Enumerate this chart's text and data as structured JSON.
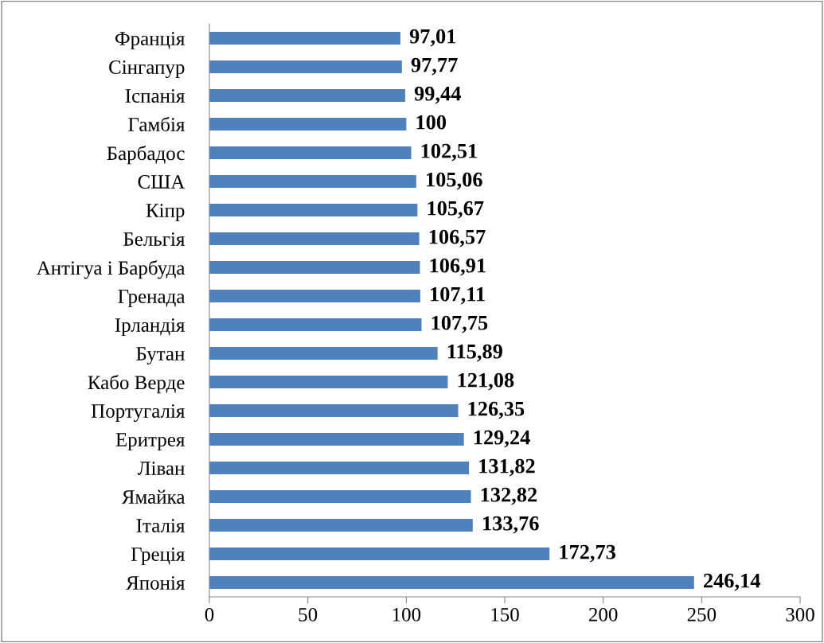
{
  "chart_data": {
    "type": "bar",
    "orientation": "horizontal",
    "categories": [
      "Франція",
      "Сінгапур",
      "Іспанія",
      "Гамбія",
      "Барбадос",
      "США",
      "Кіпр",
      "Бельгія",
      "Антігуа і Барбуда",
      "Гренада",
      "Ірландія",
      "Бутан",
      "Кабо Верде",
      "Португалія",
      "Еритрея",
      "Ліван",
      "Ямайка",
      "Італія",
      "Греція",
      "Японія"
    ],
    "values": [
      97.01,
      97.77,
      99.44,
      100,
      102.51,
      105.06,
      105.67,
      106.57,
      106.91,
      107.11,
      107.75,
      115.89,
      121.08,
      126.35,
      129.24,
      131.82,
      132.82,
      133.76,
      172.73,
      246.14
    ],
    "value_labels": [
      "97,01",
      "97,77",
      "99,44",
      "100",
      "102,51",
      "105,06",
      "105,67",
      "106,57",
      "106,91",
      "107,11",
      "107,75",
      "115,89",
      "121,08",
      "126,35",
      "129,24",
      "131,82",
      "132,82",
      "133,76",
      "172,73",
      "246,14"
    ],
    "color": "#4f81bd",
    "xlim": [
      0,
      300
    ],
    "xticks": [
      0,
      50,
      100,
      150,
      200,
      250,
      300
    ],
    "grid": false
  }
}
